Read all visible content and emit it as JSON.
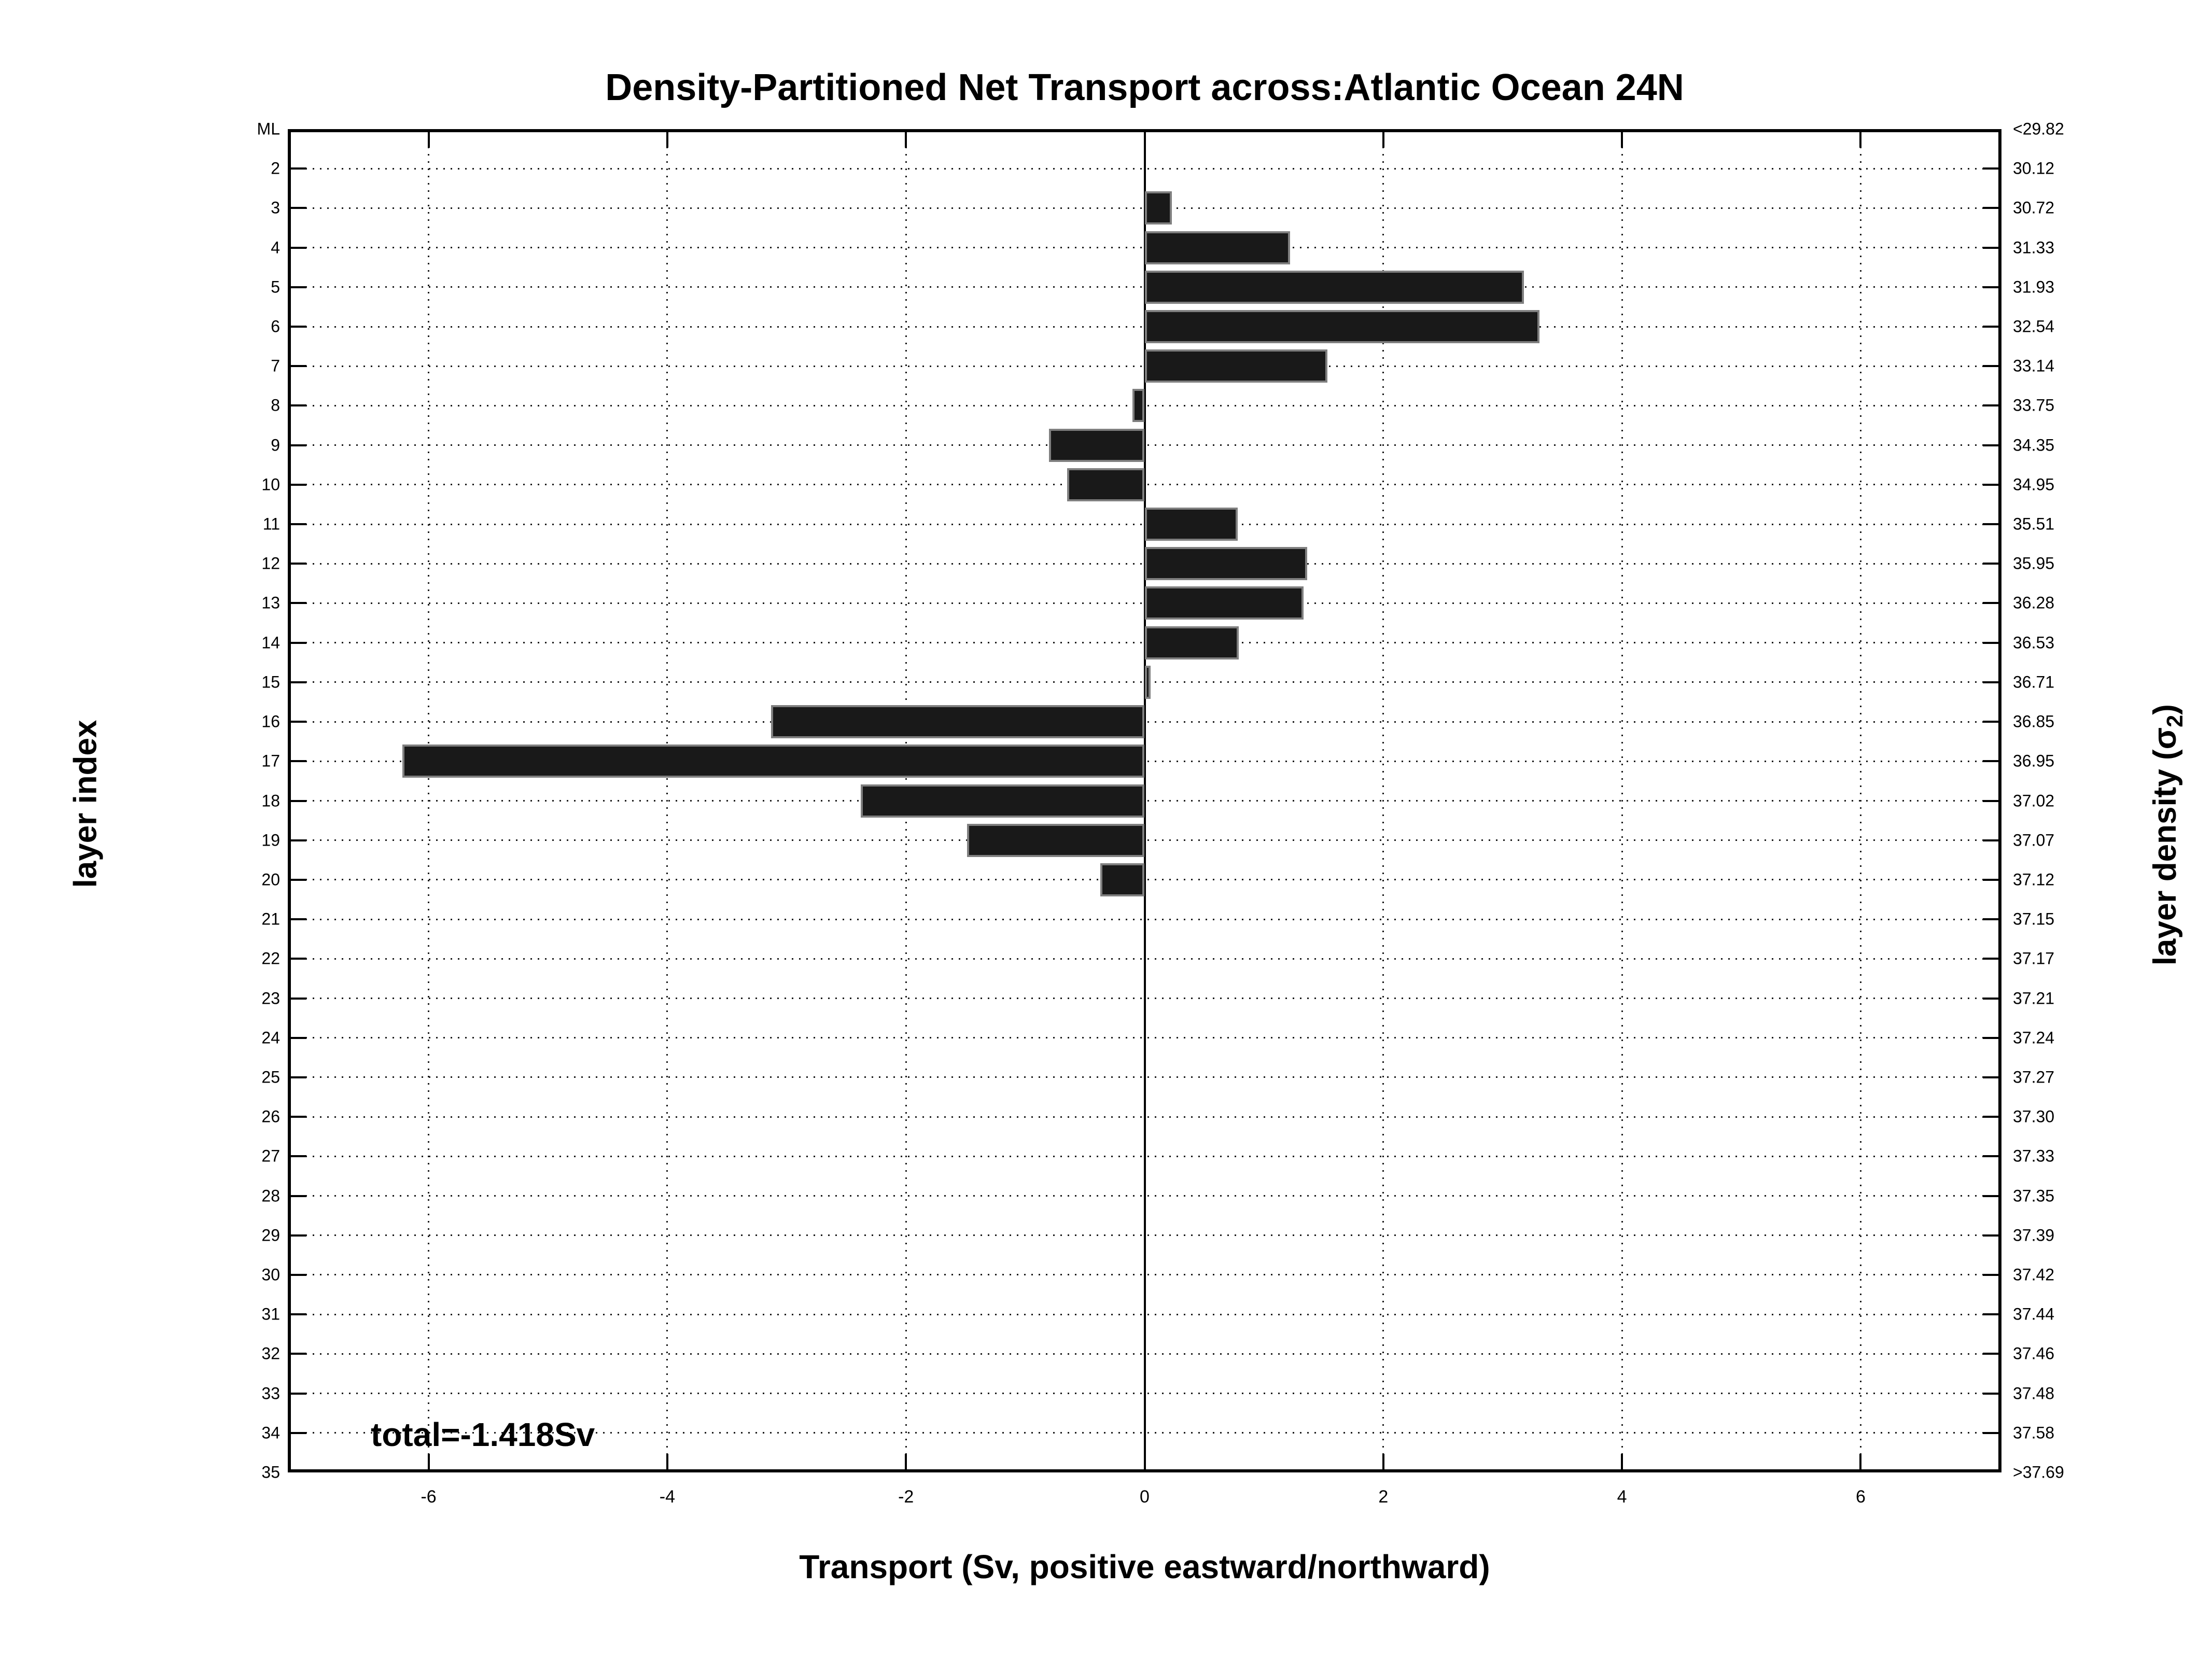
{
  "title": "Density-Partitioned Net Transport across:Atlantic Ocean 24N",
  "xlabel": "Transport (Sv, positive eastward/northward)",
  "ylabel_left": "layer index",
  "ylabel_right_prefix": "layer density (σ",
  "ylabel_right_sub": "2",
  "ylabel_right_suffix": ")",
  "total_label": "total=-1.418Sv",
  "chart_data": {
    "type": "bar",
    "orientation": "horizontal",
    "title": "Density-Partitioned Net Transport across:Atlantic Ocean 24N",
    "xlabel": "Transport (Sv, positive eastward/northward)",
    "ylabel": "layer index",
    "ylabel_right": "layer density (sigma2)",
    "total_annotation": "total=-1.418Sv",
    "xlim": [
      -7.18,
      7.18
    ],
    "x_ticks": [
      -6,
      -4,
      -2,
      0,
      2,
      4,
      6
    ],
    "grid": true,
    "bar_color": "#191919",
    "bar_border_color": "#7f7f7f",
    "categories": [
      "ML",
      "2",
      "3",
      "4",
      "5",
      "6",
      "7",
      "8",
      "9",
      "10",
      "11",
      "12",
      "13",
      "14",
      "15",
      "16",
      "17",
      "18",
      "19",
      "20",
      "21",
      "22",
      "23",
      "24",
      "25",
      "26",
      "27",
      "28",
      "29",
      "30",
      "31",
      "32",
      "33",
      "34",
      "35"
    ],
    "right_axis_labels": [
      "<29.82",
      "30.12",
      "30.72",
      "31.33",
      "31.93",
      "32.54",
      "33.14",
      "33.75",
      "34.35",
      "34.95",
      "35.51",
      "35.95",
      "36.28",
      "36.53",
      "36.71",
      "36.85",
      "36.95",
      "37.02",
      "37.07",
      "37.12",
      "37.15",
      "37.17",
      "37.21",
      "37.24",
      "37.27",
      "37.30",
      "37.33",
      "37.35",
      "37.39",
      "37.42",
      "37.44",
      "37.46",
      "37.48",
      "37.58",
      ">37.69"
    ],
    "values": [
      0,
      0,
      0.23,
      1.22,
      3.18,
      3.31,
      1.53,
      -0.1,
      -0.8,
      -0.65,
      0.78,
      1.36,
      1.33,
      0.79,
      0.05,
      -3.13,
      -6.22,
      -2.38,
      -1.49,
      -0.37,
      0,
      0,
      0,
      0,
      0,
      0,
      0,
      0,
      0,
      0,
      0,
      0,
      0,
      0,
      0
    ]
  }
}
